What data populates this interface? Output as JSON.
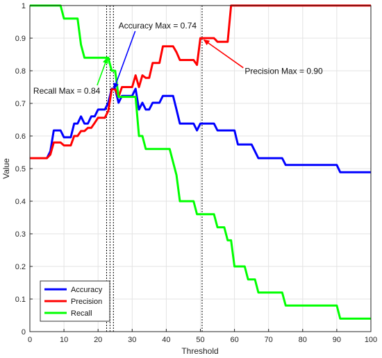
{
  "chart_data": {
    "type": "line",
    "xlabel": "Threshold",
    "ylabel": "Value",
    "xlim": [
      0,
      100
    ],
    "ylim": [
      0,
      1
    ],
    "xticks": [
      0,
      10,
      20,
      30,
      40,
      50,
      60,
      70,
      80,
      90,
      100
    ],
    "yticks": [
      0,
      0.1,
      0.2,
      0.3,
      0.4,
      0.5,
      0.6,
      0.7,
      0.8,
      0.9,
      1
    ],
    "ytick_labels": [
      "0",
      "0.1",
      "0.2",
      "0.3",
      "0.4",
      "0.5",
      "0.6",
      "0.7",
      "0.8",
      "0.9",
      "1"
    ],
    "grid": true,
    "legend_position": "bottom-left",
    "series": [
      {
        "name": "Accuracy",
        "color": "#0000ff",
        "x": [
          0,
          5,
          6,
          7,
          8,
          9,
          10,
          11,
          12,
          13,
          14,
          15,
          16,
          17,
          18,
          19,
          20,
          21,
          22,
          23,
          24,
          25,
          26,
          27,
          28,
          29,
          30,
          31,
          32,
          33,
          34,
          35,
          36,
          37,
          38,
          39,
          40,
          41,
          42,
          43,
          44,
          45,
          46,
          47,
          48,
          49,
          50,
          51,
          52,
          53,
          54,
          55,
          56,
          57,
          58,
          59,
          60,
          61,
          62,
          63,
          64,
          65,
          66,
          67,
          68,
          69,
          70,
          71,
          72,
          73,
          74,
          75,
          76,
          77,
          78,
          79,
          80,
          81,
          82,
          83,
          84,
          85,
          86,
          87,
          88,
          89,
          90,
          91,
          92,
          100
        ],
        "y": [
          0.532,
          0.532,
          0.553,
          0.617,
          0.617,
          0.617,
          0.596,
          0.596,
          0.596,
          0.638,
          0.638,
          0.66,
          0.638,
          0.638,
          0.66,
          0.66,
          0.681,
          0.681,
          0.681,
          0.702,
          0.745,
          0.745,
          0.702,
          0.723,
          0.723,
          0.723,
          0.723,
          0.745,
          0.681,
          0.702,
          0.681,
          0.681,
          0.702,
          0.702,
          0.702,
          0.723,
          0.723,
          0.723,
          0.723,
          0.681,
          0.638,
          0.638,
          0.638,
          0.638,
          0.638,
          0.617,
          0.638,
          0.638,
          0.638,
          0.638,
          0.638,
          0.617,
          0.617,
          0.617,
          0.617,
          0.617,
          0.617,
          0.574,
          0.574,
          0.574,
          0.574,
          0.574,
          0.553,
          0.532,
          0.532,
          0.532,
          0.532,
          0.532,
          0.532,
          0.532,
          0.532,
          0.511,
          0.511,
          0.511,
          0.511,
          0.511,
          0.511,
          0.511,
          0.511,
          0.511,
          0.511,
          0.511,
          0.511,
          0.511,
          0.511,
          0.511,
          0.511,
          0.489,
          0.489,
          0.489
        ]
      },
      {
        "name": "Precision",
        "color": "#ff0000",
        "x": [
          0,
          5,
          6,
          7,
          8,
          9,
          10,
          11,
          12,
          13,
          14,
          15,
          16,
          17,
          18,
          19,
          20,
          21,
          22,
          23,
          24,
          25,
          26,
          27,
          28,
          29,
          30,
          31,
          32,
          33,
          34,
          35,
          36,
          37,
          38,
          39,
          40,
          41,
          42,
          43,
          44,
          45,
          46,
          47,
          48,
          49,
          50,
          51,
          52,
          53,
          54,
          55,
          56,
          57,
          58,
          59,
          60,
          100
        ],
        "y": [
          0.532,
          0.532,
          0.543,
          0.58,
          0.58,
          0.58,
          0.571,
          0.571,
          0.571,
          0.6,
          0.6,
          0.615,
          0.615,
          0.625,
          0.625,
          0.64,
          0.656,
          0.656,
          0.656,
          0.677,
          0.743,
          0.743,
          0.72,
          0.75,
          0.75,
          0.75,
          0.75,
          0.786,
          0.75,
          0.786,
          0.778,
          0.778,
          0.824,
          0.824,
          0.824,
          0.875,
          0.875,
          0.875,
          0.875,
          0.857,
          0.833,
          0.833,
          0.833,
          0.833,
          0.833,
          0.818,
          0.9,
          0.9,
          0.9,
          0.9,
          0.9,
          0.889,
          0.889,
          0.889,
          0.889,
          1.0,
          1.0,
          1.0
        ]
      },
      {
        "name": "Recall",
        "color": "#00ff00",
        "x": [
          0,
          9,
          10,
          14,
          15,
          16,
          22,
          23,
          24,
          25,
          26,
          30,
          31,
          32,
          33,
          34,
          35,
          36,
          41,
          42,
          43,
          44,
          45,
          48,
          49,
          54,
          55,
          57,
          58,
          59,
          60,
          61,
          63,
          64,
          66,
          67,
          68,
          74,
          75,
          76,
          90,
          91,
          100
        ],
        "y": [
          1.0,
          1.0,
          0.96,
          0.96,
          0.88,
          0.84,
          0.84,
          0.84,
          0.8,
          0.8,
          0.72,
          0.72,
          0.72,
          0.6,
          0.6,
          0.56,
          0.56,
          0.56,
          0.56,
          0.52,
          0.48,
          0.4,
          0.4,
          0.4,
          0.36,
          0.36,
          0.32,
          0.32,
          0.28,
          0.28,
          0.2,
          0.2,
          0.2,
          0.16,
          0.16,
          0.12,
          0.12,
          0.12,
          0.08,
          0.08,
          0.08,
          0.04,
          0.04
        ]
      }
    ],
    "vlines": [
      22.5,
      23.5,
      24.5,
      50.5
    ],
    "annotations": [
      {
        "text": "Accuracy Max = 0.74",
        "text_x": 26,
        "text_y": 0.93,
        "target_x": 24.7,
        "target_y": 0.745,
        "color": "#0000ff"
      },
      {
        "text": "Recall Max = 0.84",
        "text_x": 1,
        "text_y": 0.73,
        "target_x": 22.7,
        "target_y": 0.84,
        "color": "#00ff00"
      },
      {
        "text": "Precision Max = 0.90",
        "text_x": 63,
        "text_y": 0.79,
        "target_x": 51,
        "target_y": 0.895,
        "color": "#ff0000"
      }
    ]
  }
}
